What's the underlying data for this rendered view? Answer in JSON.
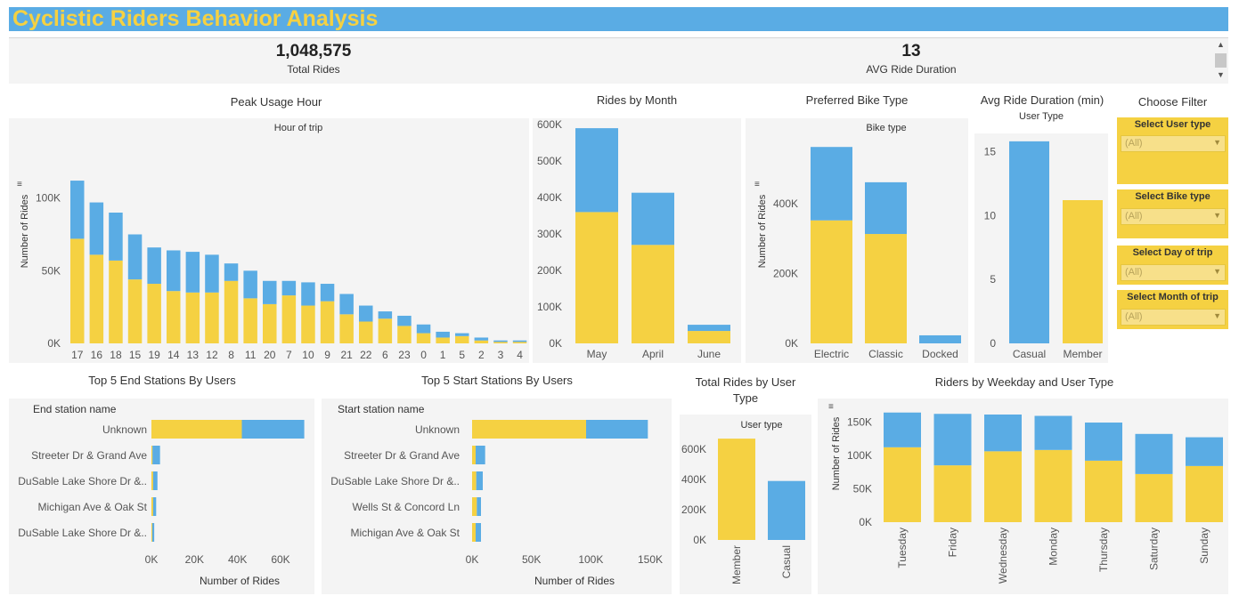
{
  "title": "Cyclistic Riders Behavior Analysis",
  "kpis": [
    {
      "value": "1,048,575",
      "label": "Total Rides"
    },
    {
      "value": "13",
      "label": "AVG Ride Duration"
    }
  ],
  "colors": {
    "member": "#f5d142",
    "casual": "#5aace4",
    "panel_bg": "#f4f4f4"
  },
  "sections": {
    "peak": "Peak Usage Hour",
    "month": "Rides by Month",
    "bike": "Preferred Bike Type",
    "avgdur": "Avg Ride Duration (min)",
    "filter": "Choose Filter",
    "end": "Top 5 End Stations By Users",
    "start": "Top 5 Start Stations By Users",
    "total": "Total Rides by User Type",
    "weekday": "Riders by Weekday and User Type"
  },
  "filters": [
    {
      "label": "Select User type",
      "value": "(All)"
    },
    {
      "label": "Select Bike type",
      "value": "(All)"
    },
    {
      "label": "Select Day of trip",
      "value": "(All)"
    },
    {
      "label": "Select Month of trip",
      "value": "(All)"
    }
  ],
  "chart_data": [
    {
      "id": "peak",
      "type": "bar",
      "stacked": true,
      "header": "Hour of trip",
      "ylabel": "Number of Rides",
      "categories": [
        "17",
        "16",
        "18",
        "15",
        "19",
        "14",
        "13",
        "12",
        "8",
        "11",
        "20",
        "7",
        "10",
        "9",
        "21",
        "22",
        "6",
        "23",
        "0",
        "1",
        "5",
        "2",
        "3",
        "4"
      ],
      "series": [
        {
          "role": "member",
          "values": [
            72000,
            61000,
            57000,
            44000,
            41000,
            36000,
            35000,
            35000,
            43000,
            31000,
            27000,
            33000,
            26000,
            29000,
            20000,
            15000,
            17000,
            12000,
            7000,
            4000,
            5000,
            2000,
            1000,
            1000
          ]
        },
        {
          "role": "casual",
          "values": [
            40000,
            36000,
            33000,
            31000,
            25000,
            28000,
            28000,
            26000,
            12000,
            19000,
            16000,
            10000,
            16000,
            12000,
            14000,
            11000,
            5000,
            7000,
            6000,
            4000,
            2000,
            2000,
            1000,
            1000
          ]
        }
      ],
      "yticks": [
        "0K",
        "50K",
        "100K"
      ],
      "ylim": [
        0,
        120000
      ]
    },
    {
      "id": "month",
      "type": "bar",
      "stacked": true,
      "categories": [
        "May",
        "April",
        "June"
      ],
      "series": [
        {
          "role": "member",
          "values": [
            360000,
            270000,
            34000
          ]
        },
        {
          "role": "casual",
          "values": [
            230000,
            143000,
            17000
          ]
        }
      ],
      "yticks": [
        "0K",
        "100K",
        "200K",
        "300K",
        "400K",
        "500K",
        "600K"
      ],
      "ylim": [
        0,
        600000
      ]
    },
    {
      "id": "bike",
      "type": "bar",
      "stacked": true,
      "header": "Bike type",
      "ylabel": "Number of Rides",
      "categories": [
        "Electric",
        "Classic",
        "Docked"
      ],
      "series": [
        {
          "role": "member",
          "values": [
            352000,
            313000,
            0
          ]
        },
        {
          "role": "casual",
          "values": [
            210000,
            148000,
            23000
          ]
        }
      ],
      "yticks": [
        "0K",
        "200K",
        "400K"
      ],
      "ylim": [
        0,
        560000
      ]
    },
    {
      "id": "avgdur",
      "type": "bar",
      "header": "User Type",
      "categories": [
        "Casual",
        "Member"
      ],
      "values": [
        15.8,
        11.2
      ],
      "colors": [
        "#5aace4",
        "#f5d142"
      ],
      "yticks": [
        "0",
        "5",
        "10",
        "15"
      ],
      "ylim": [
        0,
        16
      ]
    },
    {
      "id": "end",
      "type": "bar",
      "orientation": "horizontal",
      "stacked": true,
      "header": "End station name",
      "xlabel": "Number of Rides",
      "categories": [
        "Unknown",
        "Streeter Dr & Grand Ave",
        "DuSable Lake Shore Dr &..",
        "Michigan Ave & Oak St",
        "DuSable Lake Shore Dr &.."
      ],
      "series": [
        {
          "role": "member",
          "values": [
            42000,
            500,
            800,
            800,
            400
          ]
        },
        {
          "role": "casual",
          "values": [
            29000,
            3500,
            2000,
            1400,
            900
          ]
        }
      ],
      "xticks": [
        "0K",
        "20K",
        "40K",
        "60K"
      ],
      "xlim": [
        0,
        72000
      ]
    },
    {
      "id": "start",
      "type": "bar",
      "orientation": "horizontal",
      "stacked": true,
      "header": "Start station name",
      "xlabel": "Number of Rides",
      "categories": [
        "Unknown",
        "Streeter Dr & Grand Ave",
        "DuSable Lake Shore Dr &..",
        "Wells St & Concord Ln",
        "Michigan Ave & Oak St"
      ],
      "series": [
        {
          "role": "member",
          "values": [
            96000,
            3000,
            3500,
            4000,
            3000
          ]
        },
        {
          "role": "casual",
          "values": [
            52000,
            8000,
            5500,
            3500,
            4500
          ]
        }
      ],
      "xticks": [
        "0K",
        "50K",
        "100K",
        "150K"
      ],
      "xlim": [
        0,
        150000
      ]
    },
    {
      "id": "total",
      "type": "bar",
      "header": "User type",
      "categories": [
        "Member",
        "Casual"
      ],
      "values": [
        670000,
        390000
      ],
      "colors": [
        "#f5d142",
        "#5aace4"
      ],
      "yticks": [
        "0K",
        "200K",
        "400K",
        "600K"
      ],
      "ylim": [
        0,
        700000
      ]
    },
    {
      "id": "weekday",
      "type": "bar",
      "stacked": true,
      "ylabel": "Number of Rides",
      "categories": [
        "Tuesday",
        "Friday",
        "Wednesday",
        "Monday",
        "Thursday",
        "Saturday",
        "Sunday"
      ],
      "series": [
        {
          "role": "member",
          "values": [
            112000,
            85000,
            106000,
            108000,
            92000,
            72000,
            84000
          ]
        },
        {
          "role": "casual",
          "values": [
            52000,
            77000,
            55000,
            51000,
            57000,
            60000,
            43000
          ]
        }
      ],
      "yticks": [
        "0K",
        "50K",
        "100K",
        "150K"
      ],
      "ylim": [
        0,
        165000
      ]
    }
  ]
}
